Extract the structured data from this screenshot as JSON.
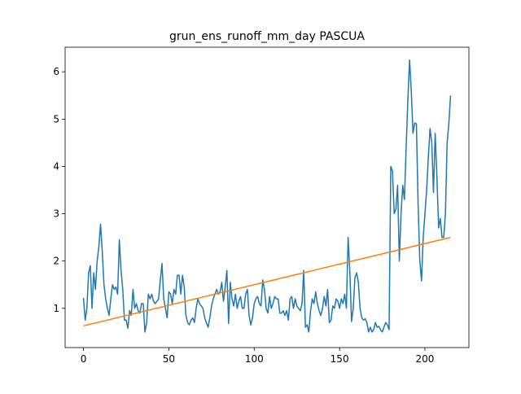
{
  "chart_data": {
    "type": "line",
    "title": "grun_ens_runoff_mm_day PASCUA",
    "xlim": [
      -10.75,
      225.75
    ],
    "xticks": [
      0,
      50,
      100,
      150,
      200
    ],
    "ylim": [
      0.17,
      6.52
    ],
    "yticks": [
      1,
      2,
      3,
      4,
      5,
      6
    ],
    "grid": false,
    "series": [
      {
        "color": "#1f77b4",
        "x": [
          0,
          1,
          2,
          3,
          4,
          5,
          6,
          7,
          8,
          9,
          10,
          11,
          12,
          13,
          14,
          15,
          16,
          17,
          18,
          19,
          20,
          21,
          22,
          23,
          24,
          25,
          26,
          27,
          28,
          29,
          30,
          31,
          32,
          33,
          34,
          35,
          36,
          37,
          38,
          39,
          40,
          41,
          42,
          43,
          44,
          45,
          46,
          47,
          48,
          49,
          50,
          51,
          52,
          53,
          54,
          55,
          56,
          57,
          58,
          59,
          60,
          61,
          62,
          63,
          64,
          65,
          66,
          67,
          68,
          69,
          70,
          71,
          72,
          73,
          74,
          75,
          76,
          77,
          78,
          79,
          80,
          81,
          82,
          83,
          84,
          85,
          86,
          87,
          88,
          89,
          90,
          91,
          92,
          93,
          94,
          95,
          96,
          97,
          98,
          99,
          100,
          101,
          102,
          103,
          104,
          105,
          106,
          107,
          108,
          109,
          110,
          111,
          112,
          113,
          114,
          115,
          116,
          117,
          118,
          119,
          120,
          121,
          122,
          123,
          124,
          125,
          126,
          127,
          128,
          129,
          130,
          131,
          132,
          133,
          134,
          135,
          136,
          137,
          138,
          139,
          140,
          141,
          142,
          143,
          144,
          145,
          146,
          147,
          148,
          149,
          150,
          151,
          152,
          153,
          154,
          155,
          156,
          157,
          158,
          159,
          160,
          161,
          162,
          163,
          164,
          165,
          166,
          167,
          168,
          169,
          170,
          171,
          172,
          173,
          174,
          175,
          176,
          177,
          178,
          179,
          180,
          181,
          182,
          183,
          184,
          185,
          186,
          187,
          188,
          189,
          190,
          191,
          192,
          193,
          194,
          195,
          196,
          197,
          198,
          199,
          200,
          201,
          202,
          203,
          204,
          205,
          206,
          207,
          208,
          209,
          210,
          211,
          212,
          213,
          214,
          215
        ],
        "values": [
          1.22,
          0.75,
          1.0,
          1.75,
          1.9,
          1.0,
          1.75,
          1.4,
          2.0,
          2.3,
          2.78,
          2.2,
          1.5,
          1.2,
          1.0,
          0.85,
          1.2,
          1.5,
          1.4,
          1.45,
          1.3,
          2.45,
          1.8,
          1.4,
          0.75,
          0.75,
          0.58,
          0.95,
          0.85,
          1.4,
          1.0,
          1.1,
          0.95,
          0.9,
          1.1,
          1.1,
          0.5,
          0.7,
          1.3,
          1.2,
          1.3,
          1.15,
          1.1,
          1.15,
          1.2,
          1.6,
          1.95,
          1.2,
          1.0,
          0.8,
          1.35,
          1.3,
          1.1,
          1.4,
          1.3,
          1.7,
          1.7,
          1.3,
          1.7,
          1.45,
          0.85,
          0.7,
          0.65,
          0.75,
          0.8,
          0.7,
          1.0,
          1.2,
          1.1,
          1.05,
          1.0,
          0.8,
          0.7,
          0.6,
          0.8,
          1.05,
          1.2,
          1.3,
          1.4,
          1.3,
          1.35,
          1.55,
          1.15,
          1.45,
          1.8,
          0.68,
          1.55,
          1.2,
          1.05,
          1.3,
          1.0,
          1.15,
          1.25,
          1.0,
          1.0,
          1.3,
          1.4,
          0.85,
          0.65,
          0.8,
          1.1,
          1.2,
          1.25,
          1.1,
          1.05,
          1.6,
          1.4,
          1.0,
          0.9,
          1.25,
          1.0,
          1.1,
          1.25,
          1.2,
          1.2,
          0.9,
          0.9,
          0.95,
          0.85,
          0.95,
          0.75,
          1.2,
          1.25,
          1.0,
          1.2,
          1.05,
          1.0,
          0.95,
          1.1,
          1.8,
          0.6,
          0.65,
          0.5,
          0.95,
          1.2,
          1.1,
          1.35,
          1.1,
          0.95,
          0.85,
          1.0,
          1.25,
          1.05,
          1.4,
          0.7,
          0.75,
          1.05,
          1.0,
          1.2,
          1.15,
          1.0,
          1.2,
          1.1,
          1.3,
          1.0,
          2.5,
          1.8,
          0.72,
          1.0,
          1.65,
          1.75,
          1.55,
          1.0,
          0.8,
          0.75,
          0.78,
          0.7,
          0.5,
          0.6,
          0.5,
          0.55,
          0.7,
          0.6,
          0.62,
          0.55,
          0.5,
          0.6,
          0.7,
          0.65,
          0.55,
          4.0,
          3.9,
          3.0,
          3.1,
          3.6,
          2.0,
          3.0,
          3.6,
          3.3,
          4.4,
          5.4,
          6.25,
          5.6,
          4.7,
          4.92,
          4.9,
          3.2,
          2.0,
          1.58,
          2.5,
          3.0,
          3.5,
          4.2,
          4.8,
          4.5,
          3.45,
          4.7,
          3.8,
          2.7,
          2.9,
          2.5,
          2.5,
          3.0,
          4.5,
          4.9,
          5.5
        ]
      },
      {
        "color": "#ff7f0e",
        "x": [
          0,
          215
        ],
        "values": [
          0.63,
          2.5
        ]
      }
    ]
  }
}
